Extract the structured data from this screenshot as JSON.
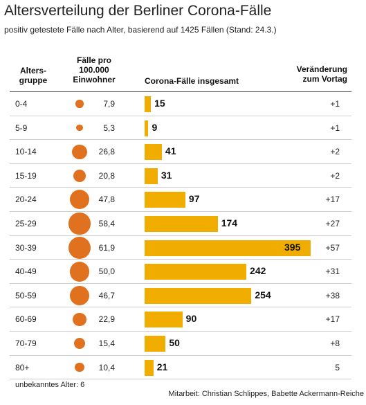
{
  "title": "Altersverteilung der Berliner Corona-Fälle",
  "subtitle": "positiv getestete Fälle nach Alter, basierend auf 1425 Fällen (Stand: 24.3.)",
  "headers": {
    "group": "Alters-\ngruppe",
    "rate": "Fälle pro\n100.000\nEinwohner",
    "total": "Corona-Fälle insgesamt",
    "change": "Veränderung\nzum Vortag"
  },
  "footer": {
    "unknown": "unbekanntes Alter: 6",
    "credits": "Mitarbeit: Christian Schlippes, Babette Ackermann-Reiche"
  },
  "colors": {
    "dot": "#e0711f",
    "bar": "#f0ad00"
  },
  "chart_data": {
    "type": "bar",
    "categories": [
      "0-4",
      "5-9",
      "10-14",
      "15-19",
      "20-24",
      "25-29",
      "30-39",
      "40-49",
      "50-59",
      "60-69",
      "70-79",
      "80+"
    ],
    "rate_labels": [
      "7,9",
      "5,3",
      "26,8",
      "20,8",
      "47,8",
      "58,4",
      "61,9",
      "50,0",
      "46,7",
      "22,9",
      "15,4",
      "10,4"
    ],
    "rates": [
      7.9,
      5.3,
      26.8,
      20.8,
      47.8,
      58.4,
      61.9,
      50.0,
      46.7,
      22.9,
      15.4,
      10.4
    ],
    "totals": [
      15,
      9,
      41,
      31,
      97,
      174,
      395,
      242,
      254,
      90,
      50,
      21
    ],
    "changes": [
      "+1",
      "+1",
      "+2",
      "+2",
      "+17",
      "+27",
      "+57",
      "+31",
      "+38",
      "+17",
      "+8",
      "5"
    ],
    "xmax": 395
  }
}
